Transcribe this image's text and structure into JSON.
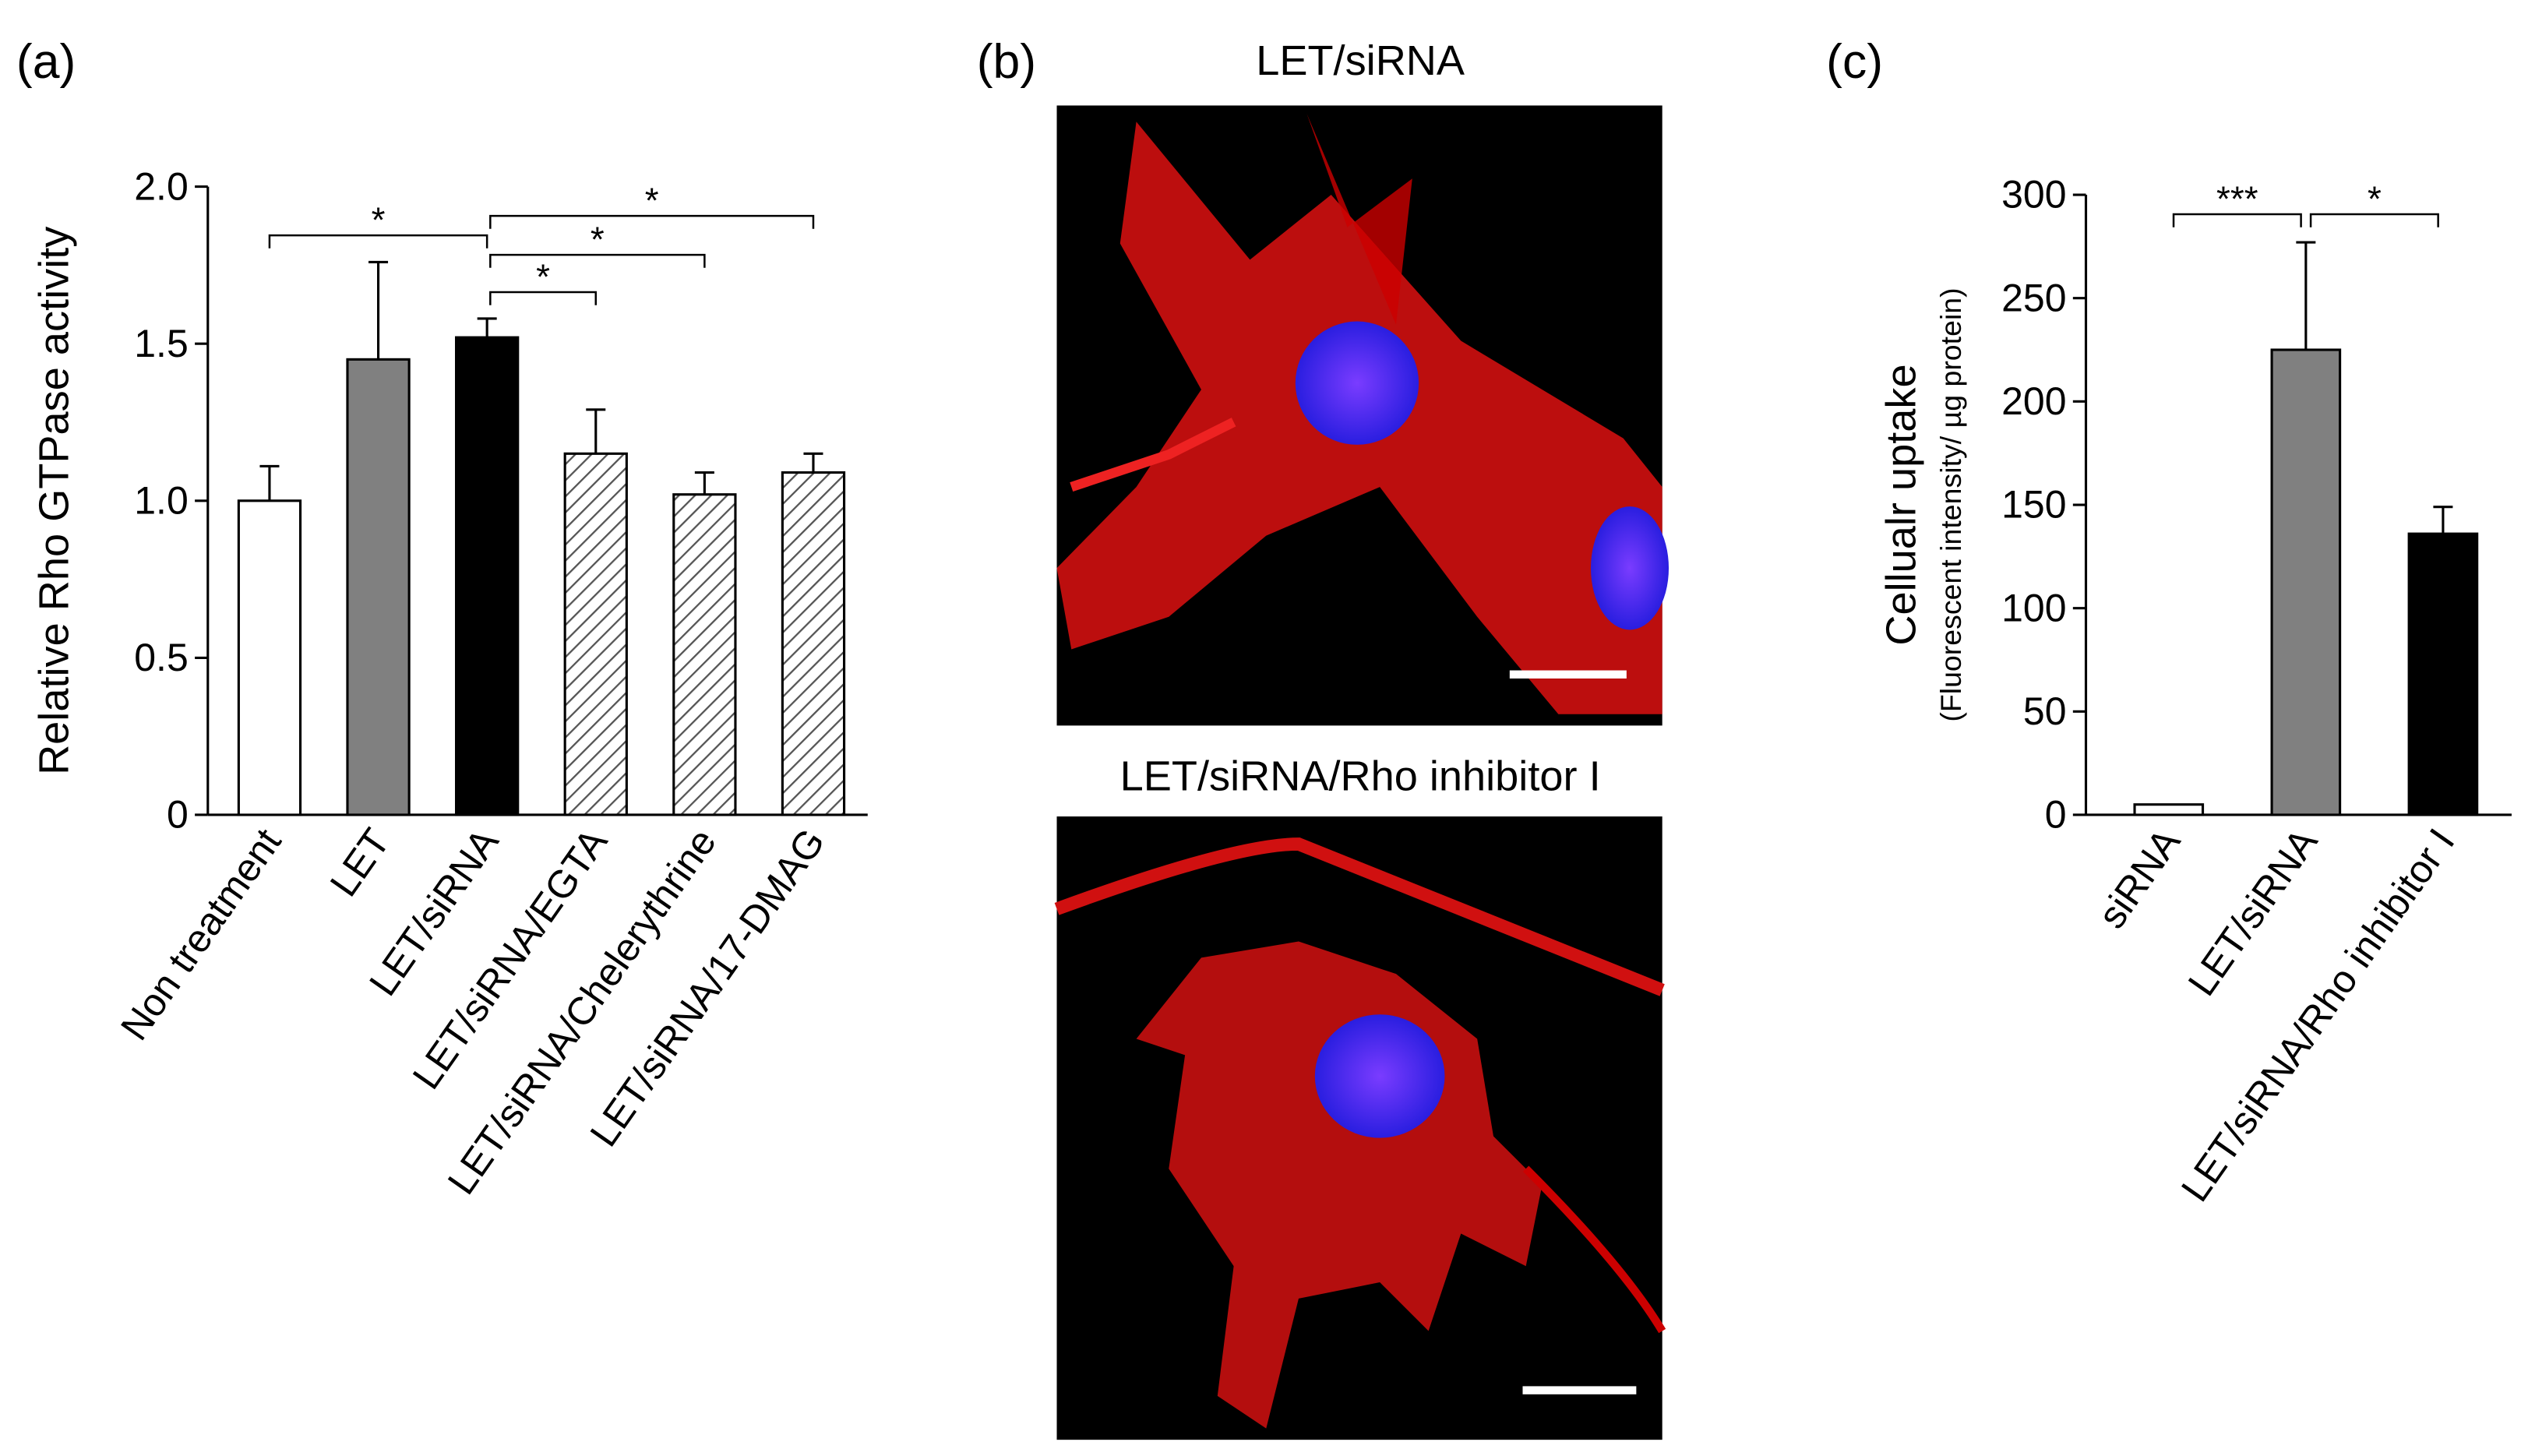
{
  "chart_data": [
    {
      "type": "bar",
      "panel_label": "(a)",
      "ylabel": "Relative Rho GTPase activity",
      "categories": [
        "Non treatment",
        "LET",
        "LET/siRNA",
        "LET/siRNA/EGTA",
        "LET/siRNA/Chelerythrine",
        "LET/siRNA/17-DMAG"
      ],
      "values": [
        1.0,
        1.45,
        1.52,
        1.15,
        1.02,
        1.09
      ],
      "errors": [
        0.11,
        0.31,
        0.06,
        0.14,
        0.07,
        0.06
      ],
      "colors": [
        "#ffffff",
        "#808080",
        "#000000",
        "hatch",
        "hatch",
        "hatch"
      ],
      "ylim": [
        0,
        2
      ],
      "yticks": [
        0,
        0.5,
        {
          "value": 1,
          "label": "1.0"
        },
        1.5,
        {
          "value": 2,
          "label": "2.0"
        }
      ],
      "annotations": [
        {
          "text": "*",
          "between": [
            0,
            2
          ]
        },
        {
          "text": "*",
          "between": [
            2,
            5
          ]
        },
        {
          "text": "*",
          "between": [
            2,
            4
          ]
        },
        {
          "text": "*",
          "between": [
            2,
            3
          ]
        }
      ]
    },
    {
      "type": "bar",
      "panel_label": "(c)",
      "ylabel": "Cellualr uptake",
      "ylabel_sub": "(Fluorescent intensity/ µg protein)",
      "categories": [
        "siRNA",
        "LET/siRNA",
        "LET/siRNA/Rho inhibitor I"
      ],
      "values": [
        5,
        225,
        136
      ],
      "errors": [
        0,
        52,
        13
      ],
      "colors": [
        "#ffffff",
        "#808080",
        "#000000"
      ],
      "ylim": [
        0,
        300
      ],
      "yticks": [
        0,
        50,
        100,
        150,
        200,
        250,
        300
      ],
      "annotations": [
        {
          "text": "***",
          "between": [
            0,
            1
          ]
        },
        {
          "text": "*",
          "between": [
            1,
            2
          ]
        }
      ]
    }
  ],
  "images": {
    "panel_label": "(b)",
    "titles": [
      "LET/siRNA",
      "LET/siRNA/Rho inhibitor I"
    ]
  }
}
